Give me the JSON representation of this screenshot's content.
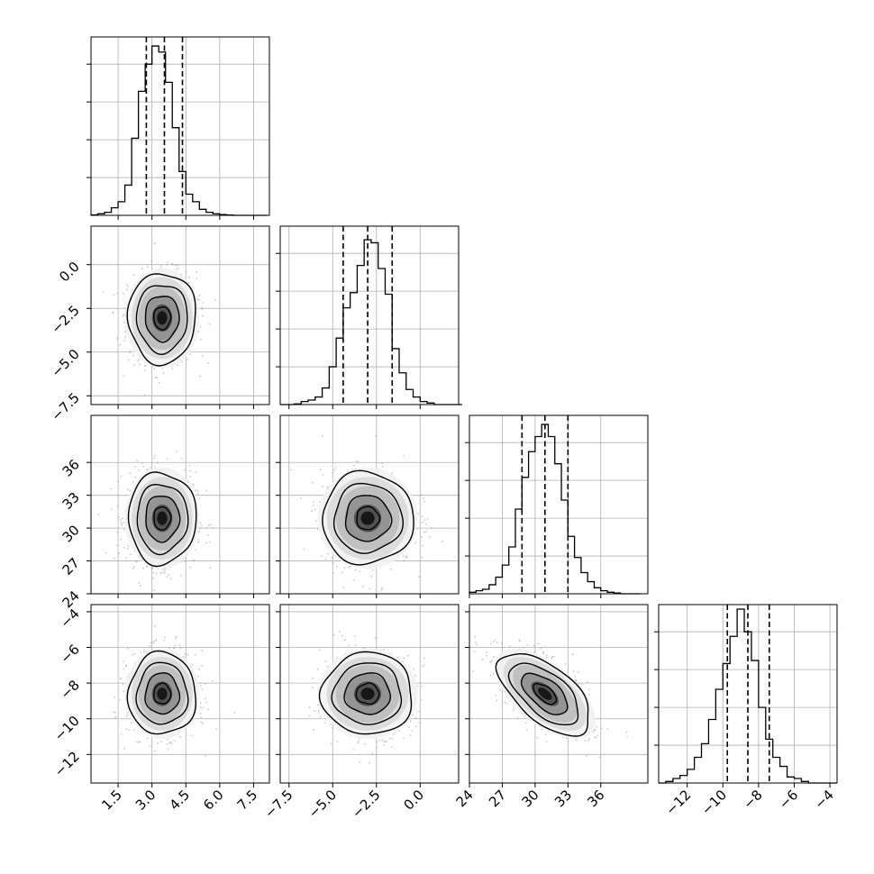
{
  "chart_data": {
    "type": "corner",
    "title": "",
    "params": [
      {
        "name": "",
        "range": [
          0.3,
          8.2
        ],
        "quantiles": [
          2.75,
          3.55,
          4.35
        ],
        "ticks": [
          1.5,
          3.0,
          4.5,
          6.0,
          7.5
        ],
        "tick_labels": [
          "1.5",
          "3.0",
          "4.5",
          "6.0",
          "7.5"
        ],
        "hist": {
          "type": "bar",
          "bins": [
            0.3,
            0.6,
            0.9,
            1.2,
            1.5,
            1.8,
            2.1,
            2.4,
            2.7,
            3.0,
            3.3,
            3.6,
            3.9,
            4.2,
            4.5,
            4.8,
            5.1,
            5.4,
            5.7,
            6.0,
            6.3,
            6.6,
            6.9,
            7.2,
            7.5,
            7.8,
            8.1
          ],
          "values": [
            0.3,
            1,
            2,
            5,
            9,
            20,
            51,
            82,
            100,
            112,
            108,
            88,
            58,
            29,
            14,
            9,
            4,
            2,
            1,
            0.5,
            0.2,
            0,
            0,
            0,
            0,
            0
          ],
          "ylim": [
            0,
            118
          ]
        }
      },
      {
        "name": "",
        "range": [
          -8.0,
          2.2
        ],
        "quantiles": [
          -4.4,
          -3.0,
          -1.6
        ],
        "ticks": [
          -7.5,
          -5.0,
          -2.5,
          0.0
        ],
        "tick_labels": [
          "−7.5",
          "−5.0",
          "−2.5",
          "0.0"
        ],
        "hist": {
          "type": "bar",
          "bins": [
            -8.0,
            -7.6,
            -7.2,
            -6.8,
            -6.4,
            -6.0,
            -5.6,
            -5.2,
            -4.8,
            -4.4,
            -4.0,
            -3.6,
            -3.2,
            -2.8,
            -2.4,
            -2.0,
            -1.6,
            -1.2,
            -0.8,
            -0.4,
            0.0,
            0.4,
            0.8,
            1.2,
            1.6,
            2.0,
            2.4
          ],
          "values": [
            0,
            0,
            0.4,
            2,
            3,
            5,
            11,
            25,
            44,
            64,
            74,
            92,
            109,
            107,
            90,
            73,
            37,
            21,
            10,
            5,
            2,
            1,
            0,
            0,
            0,
            0
          ],
          "ylim": [
            0,
            118
          ]
        }
      },
      {
        "name": "",
        "range": [
          24,
          40.3
        ],
        "quantiles": [
          28.8,
          30.9,
          33.0
        ],
        "ticks": [
          24,
          27,
          30,
          33,
          36
        ],
        "tick_labels": [
          "24",
          "27",
          "30",
          "33",
          "36"
        ],
        "hist": {
          "type": "bar",
          "bins": [
            24.0,
            24.6,
            25.2,
            25.8,
            26.4,
            27.0,
            27.6,
            28.2,
            28.8,
            29.4,
            30.0,
            30.6,
            31.2,
            31.8,
            32.4,
            33.0,
            33.6,
            34.2,
            34.8,
            35.4,
            36.0,
            36.6,
            37.2,
            37.8,
            38.4,
            39.0,
            39.6
          ],
          "values": [
            1,
            2,
            3,
            6,
            11,
            19,
            31,
            56,
            77,
            94,
            104,
            112,
            104,
            86,
            62,
            38,
            24,
            14,
            8,
            4,
            2,
            1,
            0.5,
            0,
            0,
            0
          ],
          "ylim": [
            0,
            118
          ]
        }
      },
      {
        "name": "",
        "range": [
          -13.6,
          -3.6
        ],
        "quantiles": [
          -9.75,
          -8.6,
          -7.4
        ],
        "ticks": [
          -12,
          -10,
          -8,
          -6,
          -4
        ],
        "tick_labels": [
          "−12",
          "−10",
          "−8",
          "−6",
          "−4"
        ],
        "hist": {
          "type": "bar",
          "bins": [
            -13.6,
            -13.2,
            -12.8,
            -12.4,
            -12.0,
            -11.6,
            -11.2,
            -10.8,
            -10.4,
            -10.0,
            -9.6,
            -9.2,
            -8.8,
            -8.4,
            -8.0,
            -7.6,
            -7.2,
            -6.8,
            -6.4,
            -6.0,
            -5.6,
            -5.2,
            -4.8,
            -4.4,
            -4.0,
            -3.6
          ],
          "values": [
            0,
            1,
            3,
            5,
            9,
            17,
            26,
            42,
            62,
            79,
            97,
            115,
            100,
            81,
            50,
            29,
            17,
            11,
            4,
            3,
            1,
            0,
            0,
            0,
            0
          ],
          "ylim": [
            0,
            118
          ]
        }
      }
    ],
    "pairs": [
      {
        "x": 0,
        "y": 1,
        "cx": 3.45,
        "cy": -3.05,
        "sx": 0.75,
        "sy": 1.3,
        "rho": 0.0
      },
      {
        "x": 0,
        "y": 2,
        "cx": 3.45,
        "cy": 30.9,
        "sx": 0.75,
        "sy": 2.1,
        "rho": 0.0
      },
      {
        "x": 1,
        "y": 2,
        "cx": -3.0,
        "cy": 30.9,
        "sx": 1.3,
        "sy": 2.1,
        "rho": 0.0
      },
      {
        "x": 0,
        "y": 3,
        "cx": 3.45,
        "cy": -8.6,
        "sx": 0.75,
        "sy": 1.15,
        "rho": 0.0
      },
      {
        "x": 1,
        "y": 3,
        "cx": -3.0,
        "cy": -8.6,
        "sx": 1.3,
        "sy": 1.15,
        "rho": 0.0
      },
      {
        "x": 2,
        "y": 3,
        "cx": 30.9,
        "cy": -8.6,
        "sx": 2.1,
        "sy": 1.15,
        "rho": -0.6
      }
    ],
    "contour_levels": [
      0.5,
      1.0,
      1.5,
      2.0
    ],
    "colors": {
      "line": "#000000",
      "grid": "#b0b0b0",
      "scatter": "#9a9a9a"
    },
    "grid": true,
    "legend": "none"
  }
}
